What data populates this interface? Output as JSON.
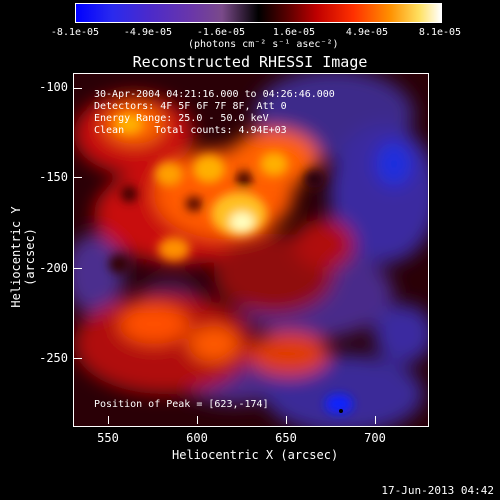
{
  "colorbar": {
    "ticks": [
      "-8.1e-05",
      "-4.9e-05",
      "-1.6e-05",
      "1.6e-05",
      "4.9e-05",
      "8.1e-05"
    ],
    "unit": "(photons cm⁻² s⁻¹ asec⁻²)"
  },
  "plot": {
    "title": "Reconstructed RHESSI Image",
    "annotations": {
      "time": "30-Apr-2004 04:21:16.000 to 04:26:46.000",
      "detectors": "Detectors: 4F 5F 6F 7F 8F, Att 0",
      "energy": "Energy Range: 25.0 - 50.0 keV",
      "clean": "Clean     Total counts: 4.94E+03",
      "peak": "Position of Peak = [623,-174]"
    },
    "x_ticks": [
      "550",
      "600",
      "650",
      "700"
    ],
    "y_ticks": [
      "-100",
      "-150",
      "-200",
      "-250"
    ],
    "xlabel": "Heliocentric X (arcsec)",
    "ylabel": "Heliocentric Y (arcsec)"
  },
  "footer": {
    "timestamp": "17-Jun-2013 04:42"
  },
  "colors": {
    "bg": "#000000",
    "text": "#ffffff"
  }
}
